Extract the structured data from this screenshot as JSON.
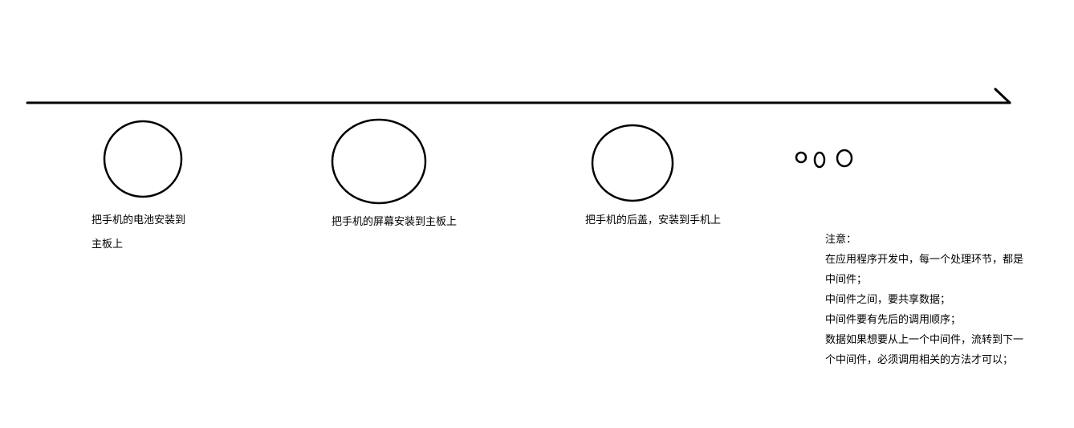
{
  "steps": [
    {
      "line1": "把手机的电池安装到",
      "line2": "主板上"
    },
    {
      "line1": "把手机的屏幕安装到主板上"
    },
    {
      "line1": "把手机的后盖，安装到手机上"
    }
  ],
  "note": {
    "title": "注意：",
    "lines": [
      "在应用程序开发中，每一个处理环节，都是",
      "中间件；",
      "中间件之间，要共享数据；",
      "中间件要有先后的调用顺序；",
      "数据如果想要从上一个中间件，流转到下一",
      "个中间件，必须调用相关的方法才可以；"
    ]
  }
}
